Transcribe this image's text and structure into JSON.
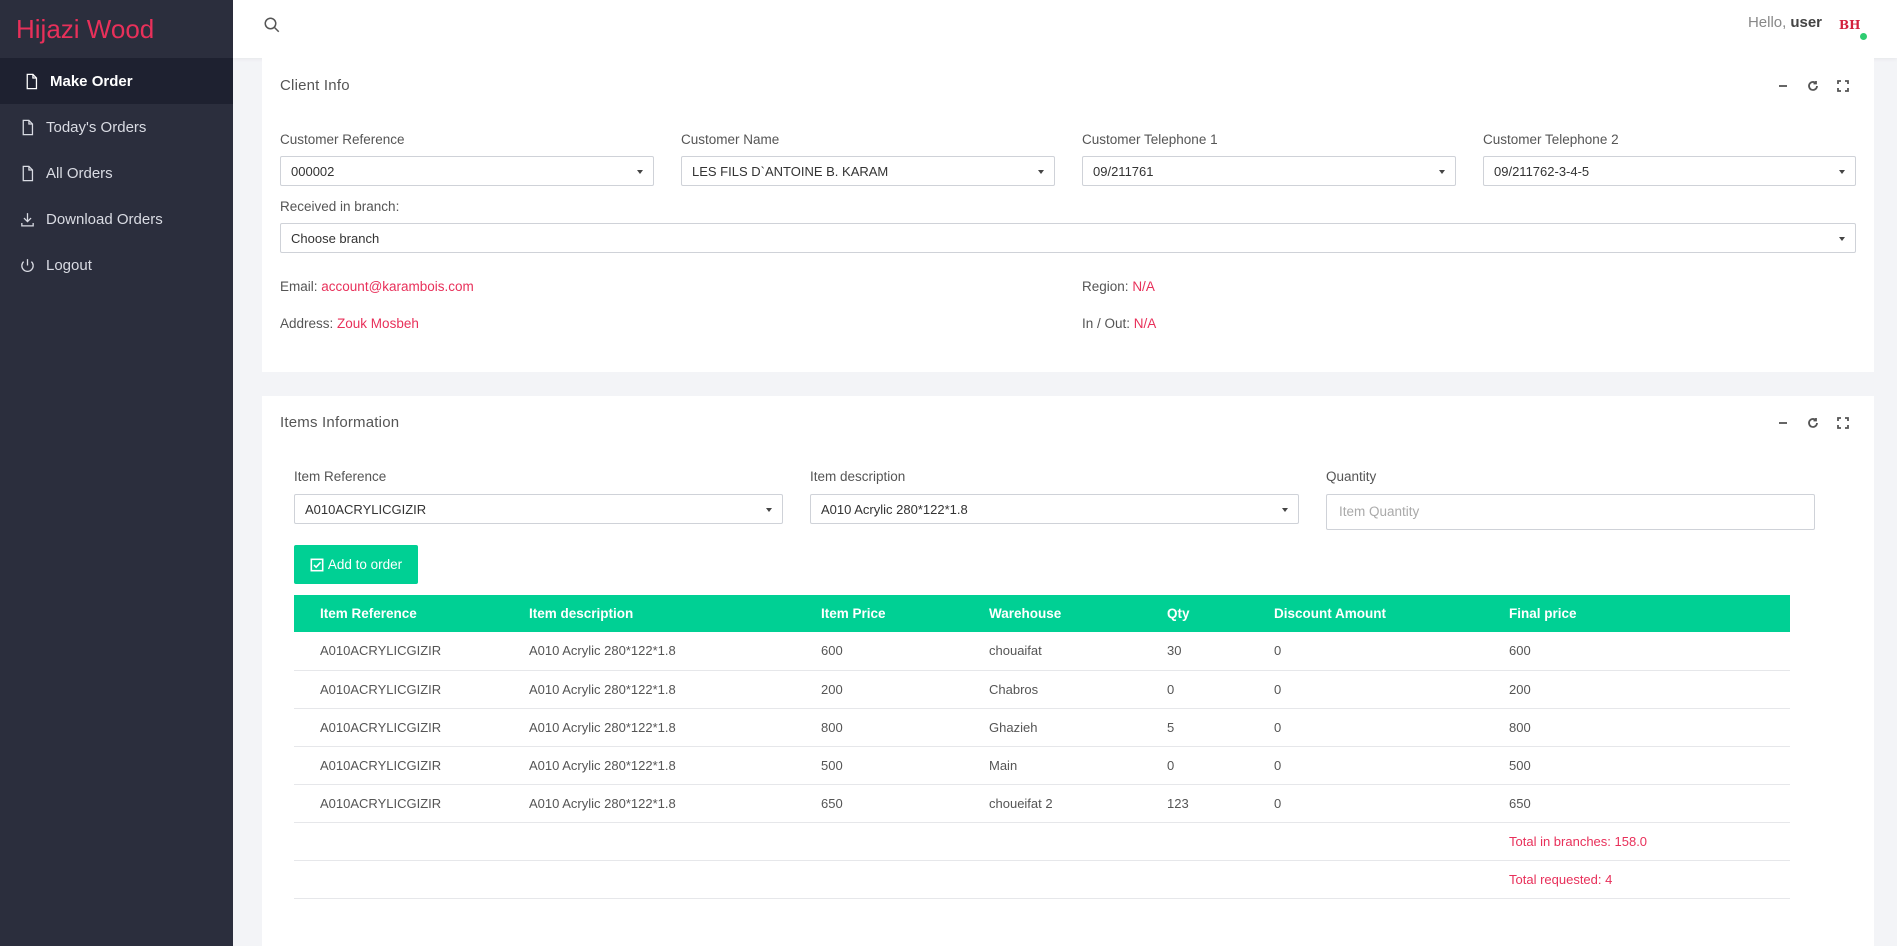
{
  "app": {
    "brand": "Hijazi Wood"
  },
  "sidebar": {
    "items": [
      {
        "label": "Make Order",
        "icon": "file-icon",
        "active": true
      },
      {
        "label": "Today's Orders",
        "icon": "file-icon"
      },
      {
        "label": "All Orders",
        "icon": "file-icon"
      },
      {
        "label": "Download Orders",
        "icon": "download-icon"
      },
      {
        "label": "Logout",
        "icon": "power-icon"
      }
    ]
  },
  "topbar": {
    "hello": "Hello,",
    "user": "user",
    "avatar_text": "BH"
  },
  "client": {
    "title": "Client Info",
    "customer_reference": {
      "label": "Customer Reference",
      "value": "000002"
    },
    "customer_name": {
      "label": "Customer Name",
      "value": "LES FILS D`ANTOINE B. KARAM"
    },
    "telephone1": {
      "label": "Customer Telephone 1",
      "value": "09/211761"
    },
    "telephone2": {
      "label": "Customer Telephone 2",
      "value": "09/211762-3-4-5"
    },
    "branch": {
      "label": "Received in branch:",
      "value": "Choose branch"
    },
    "email": {
      "label": "Email:",
      "value": "account@karambois.com"
    },
    "address": {
      "label": "Address:",
      "value": "Zouk Mosbeh"
    },
    "region": {
      "label": "Region:",
      "value": "N/A"
    },
    "inout": {
      "label": "In / Out:",
      "value": "N/A"
    }
  },
  "items": {
    "title": "Items Information",
    "item_reference": {
      "label": "Item Reference",
      "value": "A010ACRYLICGIZIR"
    },
    "item_description": {
      "label": "Item description",
      "value": "A010 Acrylic 280*122*1.8"
    },
    "quantity": {
      "label": "Quantity",
      "placeholder": "Item Quantity"
    },
    "add_button": "Add to order",
    "table": {
      "headers": [
        "Item Reference",
        "Item description",
        "Item Price",
        "Warehouse",
        "Qty",
        "Discount Amount",
        "Final price"
      ],
      "rows": [
        [
          "A010ACRYLICGIZIR",
          "A010 Acrylic 280*122*1.8",
          "600",
          "chouaifat",
          "30",
          "0",
          "600"
        ],
        [
          "A010ACRYLICGIZIR",
          "A010 Acrylic 280*122*1.8",
          "200",
          "Chabros",
          "0",
          "0",
          "200"
        ],
        [
          "A010ACRYLICGIZIR",
          "A010 Acrylic 280*122*1.8",
          "800",
          "Ghazieh",
          "5",
          "0",
          "800"
        ],
        [
          "A010ACRYLICGIZIR",
          "A010 Acrylic 280*122*1.8",
          "500",
          "Main",
          "0",
          "0",
          "500"
        ],
        [
          "A010ACRYLICGIZIR",
          "A010 Acrylic 280*122*1.8",
          "650",
          "choueifat 2",
          "123",
          "0",
          "650"
        ]
      ],
      "total_branches": "Total in branches: 158.0",
      "total_requested": "Total requested: 4"
    }
  },
  "colors": {
    "accent": "#e8305a",
    "green": "#00d094",
    "sidebar": "#2b2e3d"
  }
}
